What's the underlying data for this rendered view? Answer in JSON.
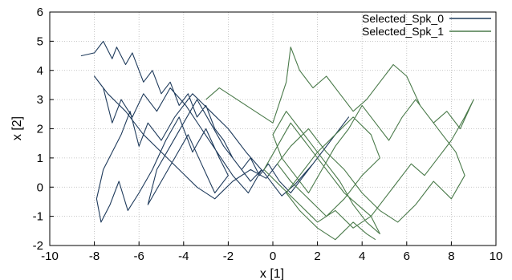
{
  "chart_data": {
    "type": "line",
    "title": "",
    "xlabel": "x [1]",
    "ylabel": "x [2]",
    "xlim": [
      -10,
      10
    ],
    "ylim": [
      -2,
      6
    ],
    "x_ticks": [
      "-10",
      "-8",
      "-6",
      "-4",
      "-2",
      "0",
      "2",
      "4",
      "6",
      "8",
      "10"
    ],
    "y_ticks": [
      "-2",
      "-1",
      "0",
      "1",
      "2",
      "3",
      "4",
      "5",
      "6"
    ],
    "grid": true,
    "legend_placement": "top-right",
    "series": [
      {
        "name": "Selected_Spk_0",
        "color": "#1f3b5c",
        "x": [
          -8.6,
          -8.0,
          -7.6,
          -7.2,
          -7.0,
          -6.6,
          -6.3,
          -5.8,
          -5.4,
          -5.0,
          -4.6,
          -4.2,
          -3.8,
          -3.4,
          -3.0,
          -2.6,
          -2.2,
          -1.8,
          -1.4,
          -1.0,
          -0.6,
          -0.2,
          0.3,
          0.8,
          1.4,
          2.0,
          2.6,
          3.2,
          3.4,
          2.6,
          1.8,
          1.0,
          0.4,
          -0.4,
          -1.2,
          -2.0,
          -2.8,
          -3.6,
          -4.4,
          -5.0,
          -5.6,
          -6.0,
          -6.4,
          -6.8,
          -7.2,
          -7.6,
          -7.9,
          -7.7,
          -7.3,
          -6.9,
          -6.5,
          -6.0,
          -5.4,
          -4.8,
          -4.2,
          -3.6,
          -3.0,
          -2.4,
          -2.0,
          -2.6,
          -3.2,
          -3.8,
          -4.4,
          -5.0,
          -5.6,
          -5.2,
          -4.6,
          -4.0,
          -3.4,
          -2.8,
          -2.2,
          -1.6,
          -1.0,
          -0.5,
          -1.1,
          -1.8,
          -2.5,
          -3.2,
          -3.9,
          -4.6,
          -5.2,
          -5.8,
          -6.3,
          -6.8,
          -7.2,
          -7.6,
          -8.0,
          -7.4,
          -6.6,
          -5.8,
          -5.0,
          -4.2,
          -3.4,
          -2.6,
          -1.8,
          -1.0,
          -0.3,
          0.2
        ],
        "y": [
          4.5,
          4.6,
          5.0,
          4.4,
          4.8,
          4.2,
          4.6,
          3.6,
          4.0,
          3.2,
          3.6,
          2.8,
          3.2,
          2.4,
          2.8,
          2.0,
          1.6,
          1.0,
          0.6,
          1.0,
          0.4,
          0.8,
          0.2,
          -0.2,
          0.4,
          1.0,
          1.6,
          2.2,
          2.4,
          1.6,
          0.8,
          0.1,
          -0.3,
          0.5,
          1.2,
          2.0,
          2.6,
          3.2,
          2.4,
          1.6,
          2.2,
          1.4,
          2.6,
          1.8,
          1.2,
          0.6,
          -0.4,
          -1.2,
          -0.6,
          0.2,
          -0.8,
          -0.2,
          0.6,
          1.6,
          2.4,
          1.2,
          2.0,
          1.0,
          0.4,
          -0.2,
          0.8,
          1.8,
          1.0,
          0.2,
          -0.6,
          0.6,
          1.4,
          2.2,
          3.0,
          2.2,
          1.4,
          0.8,
          0.2,
          0.6,
          -0.2,
          0.4,
          1.2,
          2.0,
          2.8,
          3.4,
          2.6,
          3.2,
          2.4,
          3.0,
          2.2,
          3.4,
          3.8,
          3.2,
          2.6,
          1.8,
          1.2,
          0.6,
          0.0,
          -0.4,
          0.2,
          0.6,
          0.3,
          0.8
        ]
      },
      {
        "name": "Selected_Spk_1",
        "color": "#4a7a4a",
        "x": [
          -3.0,
          -2.4,
          -1.6,
          -0.8,
          0.0,
          0.6,
          0.8,
          1.2,
          1.8,
          2.4,
          3.0,
          3.6,
          4.2,
          4.8,
          5.4,
          6.0,
          6.6,
          7.2,
          7.8,
          8.4,
          9.0,
          8.6,
          8.0,
          7.4,
          6.8,
          6.2,
          5.6,
          5.0,
          4.4,
          3.8,
          3.2,
          2.6,
          2.0,
          1.4,
          0.8,
          0.2,
          -0.4,
          0.4,
          1.2,
          2.0,
          2.8,
          3.6,
          4.4,
          4.8,
          4.2,
          3.6,
          3.0,
          2.4,
          1.8,
          1.2,
          0.6,
          0.0,
          0.4,
          1.0,
          1.6,
          2.2,
          2.8,
          3.4,
          4.0,
          4.6,
          5.2,
          5.8,
          6.4,
          7.0,
          7.6,
          8.2,
          8.6,
          8.0,
          7.2,
          6.4,
          5.6,
          4.8,
          4.0,
          3.2,
          2.4,
          1.6,
          0.8,
          0.2,
          0.8,
          1.6,
          2.4,
          3.2,
          4.0,
          4.8,
          4.4,
          3.6,
          2.8,
          2.0,
          1.2,
          0.6,
          1.2,
          2.0,
          2.8,
          3.6,
          4.2,
          4.6
        ],
        "y": [
          3.0,
          3.4,
          3.0,
          2.6,
          2.2,
          3.6,
          4.8,
          4.0,
          3.4,
          3.8,
          3.2,
          2.6,
          3.0,
          3.6,
          4.2,
          3.8,
          2.8,
          2.2,
          2.6,
          2.0,
          3.0,
          2.4,
          1.6,
          1.0,
          0.4,
          0.8,
          0.2,
          -0.4,
          -1.0,
          -0.6,
          -0.2,
          0.4,
          1.0,
          1.6,
          2.2,
          1.4,
          0.6,
          0.0,
          -0.6,
          -1.2,
          -0.8,
          -1.4,
          -1.0,
          -1.6,
          -1.2,
          -0.6,
          0.2,
          0.8,
          1.4,
          2.0,
          2.6,
          1.8,
          1.0,
          0.4,
          -0.2,
          0.6,
          1.4,
          2.0,
          2.8,
          2.2,
          1.6,
          2.4,
          3.0,
          2.4,
          1.8,
          1.2,
          0.4,
          -0.4,
          0.2,
          -0.6,
          -1.2,
          -0.8,
          -0.2,
          0.6,
          1.2,
          2.0,
          1.4,
          0.8,
          0.2,
          -0.4,
          -1.0,
          -0.4,
          0.4,
          1.0,
          1.8,
          2.4,
          1.8,
          1.2,
          0.4,
          -0.2,
          -0.8,
          -1.4,
          -1.8,
          -1.2,
          -1.6,
          -1.8
        ]
      }
    ]
  }
}
